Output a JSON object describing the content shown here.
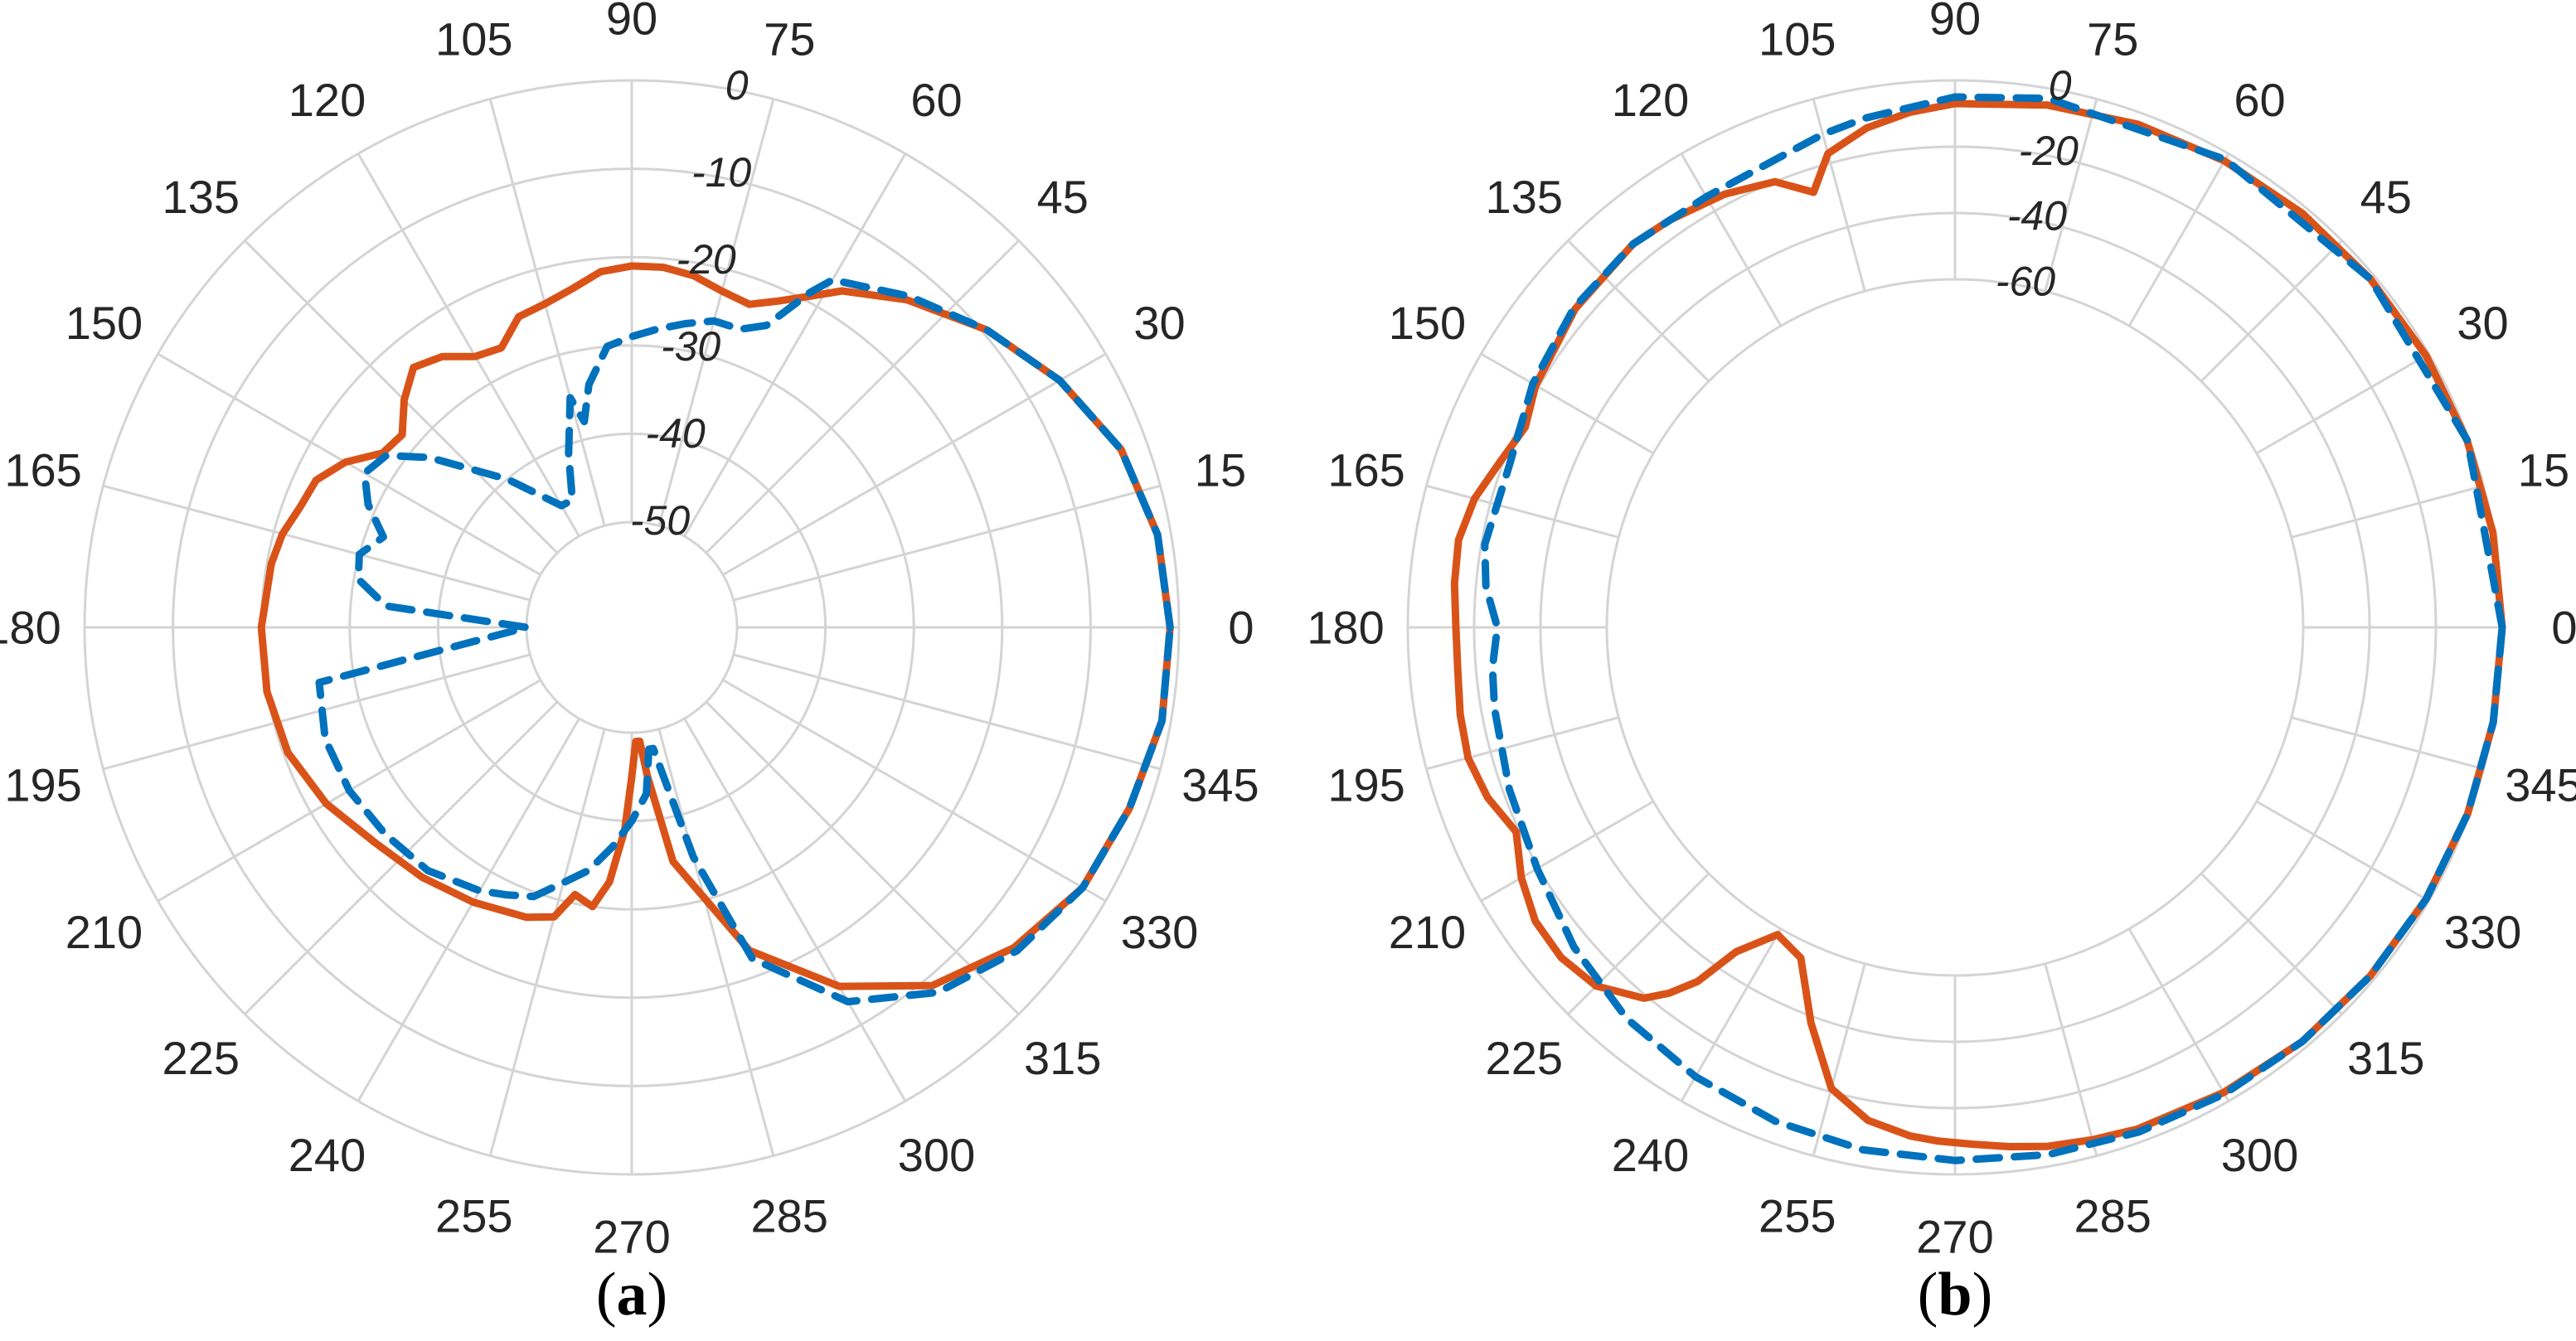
{
  "figure": {
    "colors": {
      "grid": "#d4d4d4",
      "text": "#262626",
      "solid_series": "#d95319",
      "dashed_series": "#0072bd"
    }
  },
  "chart_data": [
    {
      "type": "line",
      "coordinate_system": "polar",
      "caption": {
        "open": "(",
        "letter": "a",
        "close": ")"
      },
      "angle_unit": "degrees",
      "angle_ticks": [
        "0",
        "15",
        "30",
        "45",
        "60",
        "75",
        "90",
        "105",
        "120",
        "135",
        "150",
        "165",
        "180",
        "195",
        "210",
        "225",
        "240",
        "255",
        "270",
        "285",
        "300",
        "315",
        "330",
        "345"
      ],
      "radial_ticks": [
        "-50",
        "-40",
        "-30",
        "-20",
        "-10",
        "0"
      ],
      "rlim": [
        -50,
        0
      ],
      "grid": true,
      "legend": "none",
      "series": [
        {
          "style": "solid",
          "color": "#d95319",
          "angles": [
            0,
            10,
            20,
            30,
            40,
            50,
            58,
            62,
            66,
            70,
            75,
            80,
            85,
            90,
            95,
            100,
            105,
            110,
            115,
            120,
            125,
            130,
            135,
            140,
            145,
            150,
            155,
            160,
            165,
            170,
            180,
            190,
            200,
            210,
            220,
            230,
            240,
            250,
            255,
            258,
            262,
            265,
            268,
            270,
            272,
            274,
            276,
            280,
            290,
            300,
            310,
            320,
            330,
            340,
            350,
            360
          ],
          "values": [
            -1,
            -1.5,
            -3,
            -6,
            -9.5,
            -13.5,
            -17,
            -19.5,
            -21.5,
            -23,
            -22.5,
            -21.5,
            -21,
            -21,
            -21.5,
            -23,
            -24,
            -24.5,
            -27,
            -26.5,
            -24.5,
            -23.5,
            -25.5,
            -28,
            -27.5,
            -24.5,
            -22.5,
            -22,
            -21,
            -20.5,
            -20,
            -20,
            -20.5,
            -22,
            -24,
            -25,
            -26,
            -27,
            -28,
            -31,
            -30,
            -33,
            -39,
            -45,
            -49,
            -49,
            -45,
            -35,
            -23,
            -15,
            -9,
            -5.5,
            -3,
            -2,
            -1,
            -1
          ]
        },
        {
          "style": "dashed",
          "color": "#0072bd",
          "angles": [
            0,
            10,
            20,
            30,
            40,
            50,
            60,
            62,
            64,
            66,
            70,
            75,
            80,
            85,
            90,
            95,
            100,
            103,
            105,
            110,
            115,
            120,
            130,
            140,
            145,
            150,
            155,
            160,
            165,
            170,
            175,
            180,
            190,
            200,
            210,
            220,
            230,
            240,
            245,
            250,
            255,
            260,
            265,
            270,
            275,
            278,
            280,
            285,
            290,
            300,
            310,
            320,
            330,
            340,
            350,
            360
          ],
          "values": [
            -1,
            -1.5,
            -3,
            -6,
            -9.5,
            -13,
            -16.5,
            -19,
            -22,
            -24.5,
            -26,
            -26,
            -27,
            -28,
            -29,
            -30,
            -34,
            -38,
            -35,
            -41,
            -46,
            -46,
            -40,
            -32,
            -28,
            -27,
            -29,
            -32,
            -30,
            -30.5,
            -34,
            -50,
            -26,
            -25,
            -25,
            -25.5,
            -26,
            -27.5,
            -28.5,
            -29.5,
            -32,
            -34,
            -37,
            -40,
            -43,
            -48,
            -48,
            -35,
            -22,
            -13,
            -8,
            -5,
            -3,
            -2,
            -1,
            -1
          ]
        }
      ]
    },
    {
      "type": "line",
      "coordinate_system": "polar",
      "caption": {
        "open": "(",
        "letter": "b",
        "close": ")"
      },
      "angle_unit": "degrees",
      "angle_ticks": [
        "0",
        "15",
        "30",
        "45",
        "60",
        "75",
        "90",
        "105",
        "120",
        "135",
        "150",
        "165",
        "180",
        "195",
        "210",
        "225",
        "240",
        "255",
        "270",
        "285",
        "300",
        "315",
        "330",
        "345"
      ],
      "radial_ticks": [
        "-60",
        "-40",
        "-20",
        "0"
      ],
      "rlim": [
        -60,
        0
      ],
      "grid": true,
      "legend": "none",
      "series": [
        {
          "style": "solid",
          "color": "#d95319",
          "angles": [
            0,
            10,
            20,
            30,
            40,
            50,
            60,
            70,
            80,
            90,
            95,
            100,
            105,
            108,
            112,
            118,
            125,
            130,
            140,
            150,
            155,
            160,
            165,
            170,
            175,
            180,
            185,
            190,
            195,
            200,
            205,
            210,
            215,
            220,
            225,
            230,
            232,
            234,
            236,
            240,
            245,
            250,
            255,
            260,
            265,
            268,
            272,
            276,
            280,
            285,
            290,
            300,
            310,
            320,
            330,
            340,
            350,
            360
          ],
          "values": [
            0,
            -0.3,
            -0.6,
            -1,
            -1.5,
            -2,
            -2.5,
            -3.5,
            -5,
            -7,
            -9,
            -12,
            -17,
            -27,
            -20,
            -17,
            -15,
            -14,
            -15.5,
            -19,
            -22,
            -19,
            -15,
            -13,
            -13.5,
            -14.5,
            -14.5,
            -13.5,
            -13,
            -15,
            -19,
            -14,
            -10.5,
            -10,
            -12,
            -19,
            -25,
            -33,
            -47,
            -58,
            -55,
            -38,
            -21,
            -14,
            -11,
            -10,
            -9,
            -7.5,
            -6,
            -5,
            -4,
            -3,
            -2,
            -1.5,
            -1,
            -0.5,
            -0.2,
            0
          ]
        },
        {
          "style": "dashed",
          "color": "#0072bd",
          "angles": [
            0,
            20,
            40,
            60,
            80,
            90,
            100,
            105,
            110,
            120,
            130,
            140,
            150,
            160,
            170,
            175,
            180,
            185,
            190,
            200,
            210,
            220,
            230,
            240,
            250,
            260,
            270,
            280,
            290,
            300,
            310,
            320,
            330,
            340,
            350,
            360
          ],
          "values": [
            0,
            -0.5,
            -1.5,
            -2,
            -3,
            -5,
            -9,
            -11,
            -13.5,
            -15,
            -14,
            -15,
            -18,
            -22,
            -21,
            -23,
            -27,
            -25,
            -24,
            -22,
            -19.5,
            -15,
            -11,
            -8.5,
            -6.5,
            -5,
            -4.2,
            -3.5,
            -3,
            -2.5,
            -2,
            -1.5,
            -1,
            -0.5,
            -0.2,
            0
          ]
        }
      ]
    }
  ]
}
